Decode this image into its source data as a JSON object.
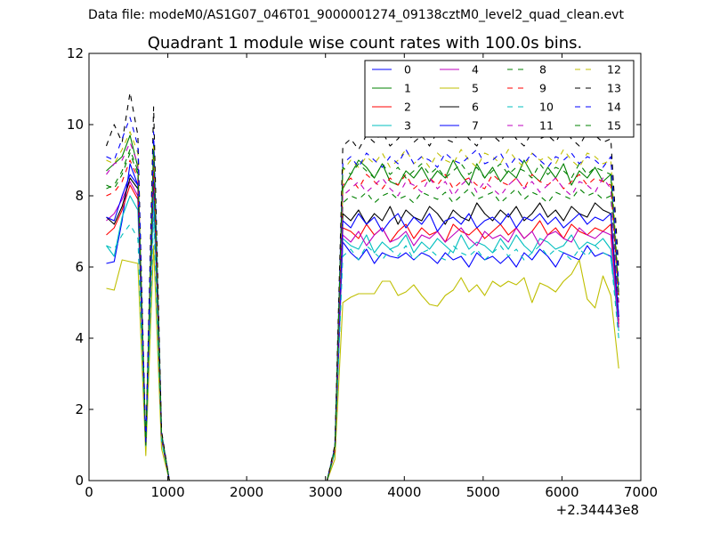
{
  "suptitle": "Data file: modeM0/AS1G07_046T01_9000001274_09138cztM0_level2_quad_clean.evt",
  "chart_data": {
    "type": "line",
    "title": "Quadrant 1 module wise count rates with 100.0s bins.",
    "xlabel": "",
    "ylabel": "",
    "x_offset_label": "+2.34443e8",
    "xlim": [
      0,
      7000
    ],
    "ylim": [
      0,
      12
    ],
    "xticks": [
      0,
      1000,
      2000,
      3000,
      4000,
      5000,
      6000,
      7000
    ],
    "xtick_labels": [
      "0",
      "1000",
      "2000",
      "3000",
      "4000",
      "5000",
      "6000",
      "7000"
    ],
    "yticks": [
      0,
      2,
      4,
      6,
      8,
      10,
      12
    ],
    "ytick_labels": [
      "0",
      "2",
      "4",
      "6",
      "8",
      "10",
      "12"
    ],
    "grid": false,
    "legend_placement": "top-right",
    "legend_columns": 4,
    "x": [
      220,
      320,
      420,
      520,
      620,
      720,
      820,
      920,
      1020,
      1120,
      1220,
      1320,
      1420,
      1520,
      1620,
      1720,
      1820,
      1920,
      2020,
      2120,
      2220,
      2320,
      2420,
      2520,
      2620,
      2720,
      2820,
      2920,
      3020,
      3120,
      3220,
      3320,
      3420,
      3520,
      3620,
      3720,
      3820,
      3920,
      4020,
      4120,
      4220,
      4320,
      4420,
      4520,
      4620,
      4720,
      4820,
      4920,
      5020,
      5120,
      5220,
      5320,
      5420,
      5520,
      5620,
      5720,
      5820,
      5920,
      6020,
      6120,
      6220,
      6320,
      6420,
      6520,
      6620,
      6720
    ],
    "series": [
      {
        "name": "0",
        "color": "#0000ff",
        "style": "solid",
        "values": [
          6.1,
          6.15,
          7.3,
          8.9,
          8.3,
          1.0,
          9.0,
          1.2,
          0,
          0,
          0,
          0,
          0,
          0,
          0,
          0,
          0,
          0,
          0,
          0,
          0,
          0,
          0,
          0,
          0,
          0,
          0,
          0,
          0,
          0.8,
          6.7,
          6.4,
          6.2,
          6.5,
          6.1,
          6.4,
          6.3,
          6.25,
          6.4,
          6.2,
          6.4,
          6.3,
          6.1,
          6.4,
          6.2,
          6.3,
          6.0,
          6.4,
          6.2,
          6.3,
          6.1,
          6.3,
          6.0,
          6.4,
          6.2,
          6.5,
          6.3,
          6.0,
          6.4,
          6.3,
          6.2,
          6.6,
          6.3,
          6.4,
          6.3,
          4.5
        ]
      },
      {
        "name": "1",
        "color": "#008000",
        "style": "solid",
        "values": [
          8.7,
          8.9,
          9.1,
          9.7,
          8.8,
          1.0,
          9.5,
          1.3,
          0,
          0,
          0,
          0,
          0,
          0,
          0,
          0,
          0,
          0,
          0,
          0,
          0,
          0,
          0,
          0,
          0,
          0,
          0,
          0,
          0,
          0.9,
          8.2,
          8.6,
          9.0,
          8.8,
          8.5,
          8.9,
          8.4,
          8.3,
          8.7,
          8.5,
          8.8,
          8.4,
          8.7,
          8.5,
          9.0,
          8.6,
          8.3,
          8.9,
          8.5,
          8.8,
          8.4,
          8.7,
          8.5,
          9.0,
          8.6,
          8.4,
          8.8,
          8.5,
          8.9,
          8.3,
          8.7,
          8.5,
          8.8,
          8.4,
          8.6,
          5.2
        ]
      },
      {
        "name": "2",
        "color": "#ff0000",
        "style": "solid",
        "values": [
          6.9,
          7.1,
          7.6,
          8.3,
          7.9,
          1.0,
          8.5,
          1.2,
          0,
          0,
          0,
          0,
          0,
          0,
          0,
          0,
          0,
          0,
          0,
          0,
          0,
          0,
          0,
          0,
          0,
          0,
          0,
          0,
          0,
          0.85,
          7.1,
          7.0,
          6.8,
          7.2,
          6.9,
          7.1,
          6.7,
          7.0,
          7.2,
          6.8,
          7.1,
          6.9,
          7.0,
          6.7,
          7.2,
          7.0,
          6.9,
          7.1,
          6.8,
          7.0,
          7.2,
          6.9,
          7.1,
          6.8,
          7.0,
          7.3,
          6.9,
          7.1,
          6.8,
          7.2,
          7.0,
          6.9,
          7.1,
          7.0,
          7.2,
          4.4
        ]
      },
      {
        "name": "3",
        "color": "#00bfbf",
        "style": "solid",
        "values": [
          6.6,
          6.3,
          7.4,
          8.0,
          7.6,
          1.0,
          8.0,
          1.15,
          0,
          0,
          0,
          0,
          0,
          0,
          0,
          0,
          0,
          0,
          0,
          0,
          0,
          0,
          0,
          0,
          0,
          0,
          0,
          0,
          0,
          0.8,
          6.8,
          6.6,
          6.5,
          6.9,
          6.4,
          6.7,
          6.5,
          6.6,
          6.9,
          6.4,
          6.7,
          6.5,
          6.8,
          6.6,
          6.4,
          6.9,
          6.5,
          6.7,
          6.6,
          6.4,
          6.8,
          6.5,
          6.9,
          6.6,
          6.4,
          6.8,
          6.7,
          6.5,
          6.6,
          6.9,
          6.5,
          6.7,
          6.6,
          6.8,
          6.5,
          4.2
        ]
      },
      {
        "name": "4",
        "color": "#bf00bf",
        "style": "solid",
        "values": [
          7.3,
          7.5,
          7.9,
          8.4,
          8.0,
          1.0,
          8.7,
          1.2,
          0,
          0,
          0,
          0,
          0,
          0,
          0,
          0,
          0,
          0,
          0,
          0,
          0,
          0,
          0,
          0,
          0,
          0,
          0,
          0,
          0,
          0.85,
          6.9,
          6.7,
          7.0,
          6.6,
          6.9,
          7.1,
          6.7,
          6.8,
          7.0,
          6.6,
          6.9,
          6.8,
          7.0,
          6.7,
          6.9,
          7.1,
          6.8,
          6.6,
          7.0,
          6.8,
          6.9,
          6.7,
          7.1,
          6.8,
          7.0,
          6.6,
          6.9,
          7.0,
          6.8,
          6.7,
          7.1,
          6.9,
          6.8,
          7.0,
          6.9,
          4.3
        ]
      },
      {
        "name": "5",
        "color": "#bfbf00",
        "style": "solid",
        "values": [
          5.4,
          5.35,
          6.2,
          6.15,
          6.1,
          0.7,
          6.6,
          0.9,
          0,
          0,
          0,
          0,
          0,
          0,
          0,
          0,
          0,
          0,
          0,
          0,
          0,
          0,
          0,
          0,
          0,
          0,
          0,
          0,
          0,
          0.6,
          5.0,
          5.15,
          5.25,
          5.25,
          5.25,
          5.6,
          5.6,
          5.2,
          5.3,
          5.5,
          5.2,
          4.95,
          4.9,
          5.2,
          5.35,
          5.7,
          5.3,
          5.5,
          5.2,
          5.6,
          5.45,
          5.6,
          5.5,
          5.7,
          5.0,
          5.55,
          5.45,
          5.3,
          5.6,
          5.8,
          6.2,
          5.1,
          4.85,
          5.75,
          5.2,
          3.15
        ]
      },
      {
        "name": "6",
        "color": "#000000",
        "style": "solid",
        "values": [
          7.4,
          7.2,
          7.7,
          8.5,
          8.2,
          1.0,
          8.8,
          1.2,
          0,
          0,
          0,
          0,
          0,
          0,
          0,
          0,
          0,
          0,
          0,
          0,
          0,
          0,
          0,
          0,
          0,
          0,
          0,
          0,
          0,
          0.85,
          7.5,
          7.3,
          7.6,
          7.2,
          7.5,
          7.3,
          7.7,
          7.2,
          7.6,
          7.4,
          7.3,
          7.7,
          7.5,
          7.2,
          7.6,
          7.4,
          7.3,
          7.8,
          7.5,
          7.3,
          7.6,
          7.4,
          7.7,
          7.3,
          7.5,
          7.8,
          7.4,
          7.6,
          7.3,
          7.7,
          7.5,
          7.4,
          7.8,
          7.6,
          7.5,
          4.6
        ]
      },
      {
        "name": "7",
        "color": "#0000ff",
        "style": "solid",
        "values": [
          7.4,
          7.3,
          8.0,
          8.6,
          8.3,
          1.0,
          8.9,
          1.2,
          0,
          0,
          0,
          0,
          0,
          0,
          0,
          0,
          0,
          0,
          0,
          0,
          0,
          0,
          0,
          0,
          0,
          0,
          0,
          0,
          0,
          0.85,
          7.3,
          7.1,
          7.5,
          7.2,
          7.4,
          7.0,
          7.3,
          7.5,
          7.1,
          7.4,
          7.2,
          7.5,
          7.0,
          7.3,
          7.4,
          7.2,
          7.5,
          7.1,
          7.3,
          7.4,
          7.2,
          7.5,
          7.1,
          7.4,
          7.3,
          7.5,
          7.2,
          7.4,
          7.1,
          7.3,
          7.5,
          7.2,
          7.4,
          7.3,
          7.5,
          4.6
        ]
      },
      {
        "name": "8",
        "color": "#008000",
        "style": "dashed",
        "values": [
          8.3,
          8.2,
          8.6,
          9.2,
          8.6,
          1.0,
          9.2,
          1.3,
          0,
          0,
          0,
          0,
          0,
          0,
          0,
          0,
          0,
          0,
          0,
          0,
          0,
          0,
          0,
          0,
          0,
          0,
          0,
          0,
          0,
          0.9,
          7.8,
          8.0,
          7.9,
          8.1,
          7.8,
          8.0,
          8.1,
          7.9,
          8.0,
          7.8,
          8.1,
          8.0,
          7.9,
          8.1,
          7.8,
          8.0,
          8.2,
          7.9,
          8.0,
          8.1,
          7.8,
          8.0,
          8.2,
          7.9,
          8.1,
          8.0,
          7.8,
          8.1,
          8.0,
          7.9,
          8.2,
          8.0,
          8.1,
          7.9,
          8.0,
          4.9
        ]
      },
      {
        "name": "9",
        "color": "#ff0000",
        "style": "dashed",
        "values": [
          8.0,
          8.1,
          8.4,
          9.0,
          8.5,
          1.0,
          9.0,
          1.25,
          0,
          0,
          0,
          0,
          0,
          0,
          0,
          0,
          0,
          0,
          0,
          0,
          0,
          0,
          0,
          0,
          0,
          0,
          0,
          0,
          0,
          0.85,
          8.3,
          8.5,
          8.2,
          8.6,
          8.4,
          8.2,
          8.5,
          8.3,
          8.6,
          8.2,
          8.4,
          8.5,
          8.3,
          8.6,
          8.2,
          8.4,
          8.5,
          8.3,
          8.2,
          8.6,
          8.4,
          8.3,
          8.5,
          8.2,
          8.6,
          8.4,
          8.3,
          8.5,
          8.2,
          8.4,
          8.6,
          8.3,
          8.5,
          8.4,
          8.3,
          5.0
        ]
      },
      {
        "name": "10",
        "color": "#00bfbf",
        "style": "dashed",
        "values": [
          6.6,
          6.5,
          6.9,
          7.2,
          6.8,
          0.9,
          7.4,
          1.1,
          0,
          0,
          0,
          0,
          0,
          0,
          0,
          0,
          0,
          0,
          0,
          0,
          0,
          0,
          0,
          0,
          0,
          0,
          0,
          0,
          0,
          0.8,
          6.3,
          6.5,
          6.2,
          6.6,
          6.4,
          6.2,
          6.5,
          6.3,
          6.6,
          6.2,
          6.4,
          6.5,
          6.3,
          6.2,
          6.6,
          6.4,
          6.3,
          6.5,
          6.2,
          6.4,
          6.6,
          6.3,
          6.5,
          6.2,
          6.4,
          6.6,
          6.3,
          6.5,
          6.4,
          6.2,
          6.5,
          6.3,
          6.6,
          6.4,
          6.3,
          4.0
        ]
      },
      {
        "name": "11",
        "color": "#bf00bf",
        "style": "dashed",
        "values": [
          8.6,
          8.9,
          9.0,
          9.5,
          8.9,
          1.0,
          9.3,
          1.3,
          0,
          0,
          0,
          0,
          0,
          0,
          0,
          0,
          0,
          0,
          0,
          0,
          0,
          0,
          0,
          0,
          0,
          0,
          0,
          0,
          0,
          0.9,
          8.0,
          8.2,
          8.4,
          8.1,
          8.3,
          8.5,
          8.2,
          8.0,
          8.4,
          8.3,
          8.1,
          8.5,
          8.2,
          8.4,
          8.0,
          8.3,
          8.5,
          8.1,
          8.4,
          8.2,
          8.0,
          8.3,
          8.5,
          8.2,
          8.4,
          8.1,
          8.3,
          8.5,
          8.2,
          8.0,
          8.4,
          8.3,
          8.1,
          8.5,
          8.2,
          5.0
        ]
      },
      {
        "name": "12",
        "color": "#bfbf00",
        "style": "dashed",
        "values": [
          9.0,
          8.9,
          9.3,
          9.8,
          9.2,
          1.0,
          9.6,
          1.3,
          0,
          0,
          0,
          0,
          0,
          0,
          0,
          0,
          0,
          0,
          0,
          0,
          0,
          0,
          0,
          0,
          0,
          0,
          0,
          0,
          0,
          0.9,
          8.7,
          9.0,
          8.8,
          9.1,
          8.9,
          9.2,
          8.8,
          9.0,
          9.3,
          8.9,
          9.1,
          8.8,
          9.2,
          9.0,
          8.9,
          9.3,
          9.0,
          8.8,
          9.2,
          9.1,
          8.9,
          9.3,
          9.0,
          8.8,
          9.2,
          9.0,
          9.1,
          8.9,
          9.3,
          9.0,
          8.8,
          9.2,
          9.1,
          8.9,
          9.0,
          5.4
        ]
      },
      {
        "name": "13",
        "color": "#000000",
        "style": "dashed",
        "values": [
          9.4,
          10.0,
          9.5,
          10.9,
          9.7,
          1.0,
          10.5,
          1.4,
          0,
          0,
          0,
          0,
          0,
          0,
          0,
          0,
          0,
          0,
          0,
          0,
          0,
          0,
          0,
          0,
          0,
          0,
          0,
          0,
          0,
          1.0,
          9.4,
          9.6,
          9.3,
          9.7,
          9.5,
          9.8,
          9.4,
          9.6,
          9.9,
          9.5,
          9.7,
          9.4,
          9.8,
          9.6,
          9.5,
          9.9,
          9.6,
          9.4,
          9.8,
          9.7,
          9.5,
          9.9,
          9.6,
          9.4,
          9.8,
          9.6,
          9.7,
          9.5,
          9.9,
          9.6,
          9.4,
          9.8,
          9.7,
          9.5,
          9.6,
          5.9
        ]
      },
      {
        "name": "14",
        "color": "#0000ff",
        "style": "dashed",
        "values": [
          9.1,
          9.0,
          9.6,
          10.2,
          9.4,
          1.0,
          9.8,
          1.35,
          0,
          0,
          0,
          0,
          0,
          0,
          0,
          0,
          0,
          0,
          0,
          0,
          0,
          0,
          0,
          0,
          0,
          0,
          0,
          0,
          0,
          0.95,
          8.9,
          9.1,
          8.8,
          9.2,
          9.0,
          8.8,
          9.1,
          8.9,
          9.3,
          8.9,
          9.1,
          9.0,
          8.8,
          9.2,
          9.0,
          8.9,
          9.1,
          9.3,
          8.9,
          9.0,
          9.2,
          8.8,
          9.1,
          8.9,
          9.2,
          9.0,
          8.8,
          9.1,
          9.0,
          9.2,
          8.9,
          9.1,
          9.0,
          8.8,
          9.1,
          5.5
        ]
      },
      {
        "name": "15",
        "color": "#008000",
        "style": "dashed",
        "values": [
          8.2,
          8.3,
          8.7,
          9.3,
          8.7,
          1.0,
          9.3,
          1.3,
          0,
          0,
          0,
          0,
          0,
          0,
          0,
          0,
          0,
          0,
          0,
          0,
          0,
          0,
          0,
          0,
          0,
          0,
          0,
          0,
          0,
          0.9,
          8.8,
          8.6,
          8.9,
          8.7,
          8.5,
          8.9,
          8.6,
          8.8,
          8.5,
          8.7,
          8.9,
          8.6,
          8.8,
          8.5,
          8.7,
          8.9,
          8.6,
          8.8,
          8.5,
          8.7,
          8.9,
          8.6,
          8.8,
          8.7,
          8.5,
          8.9,
          8.6,
          8.8,
          8.7,
          8.5,
          8.9,
          8.6,
          8.8,
          8.7,
          8.6,
          5.3
        ]
      }
    ]
  }
}
